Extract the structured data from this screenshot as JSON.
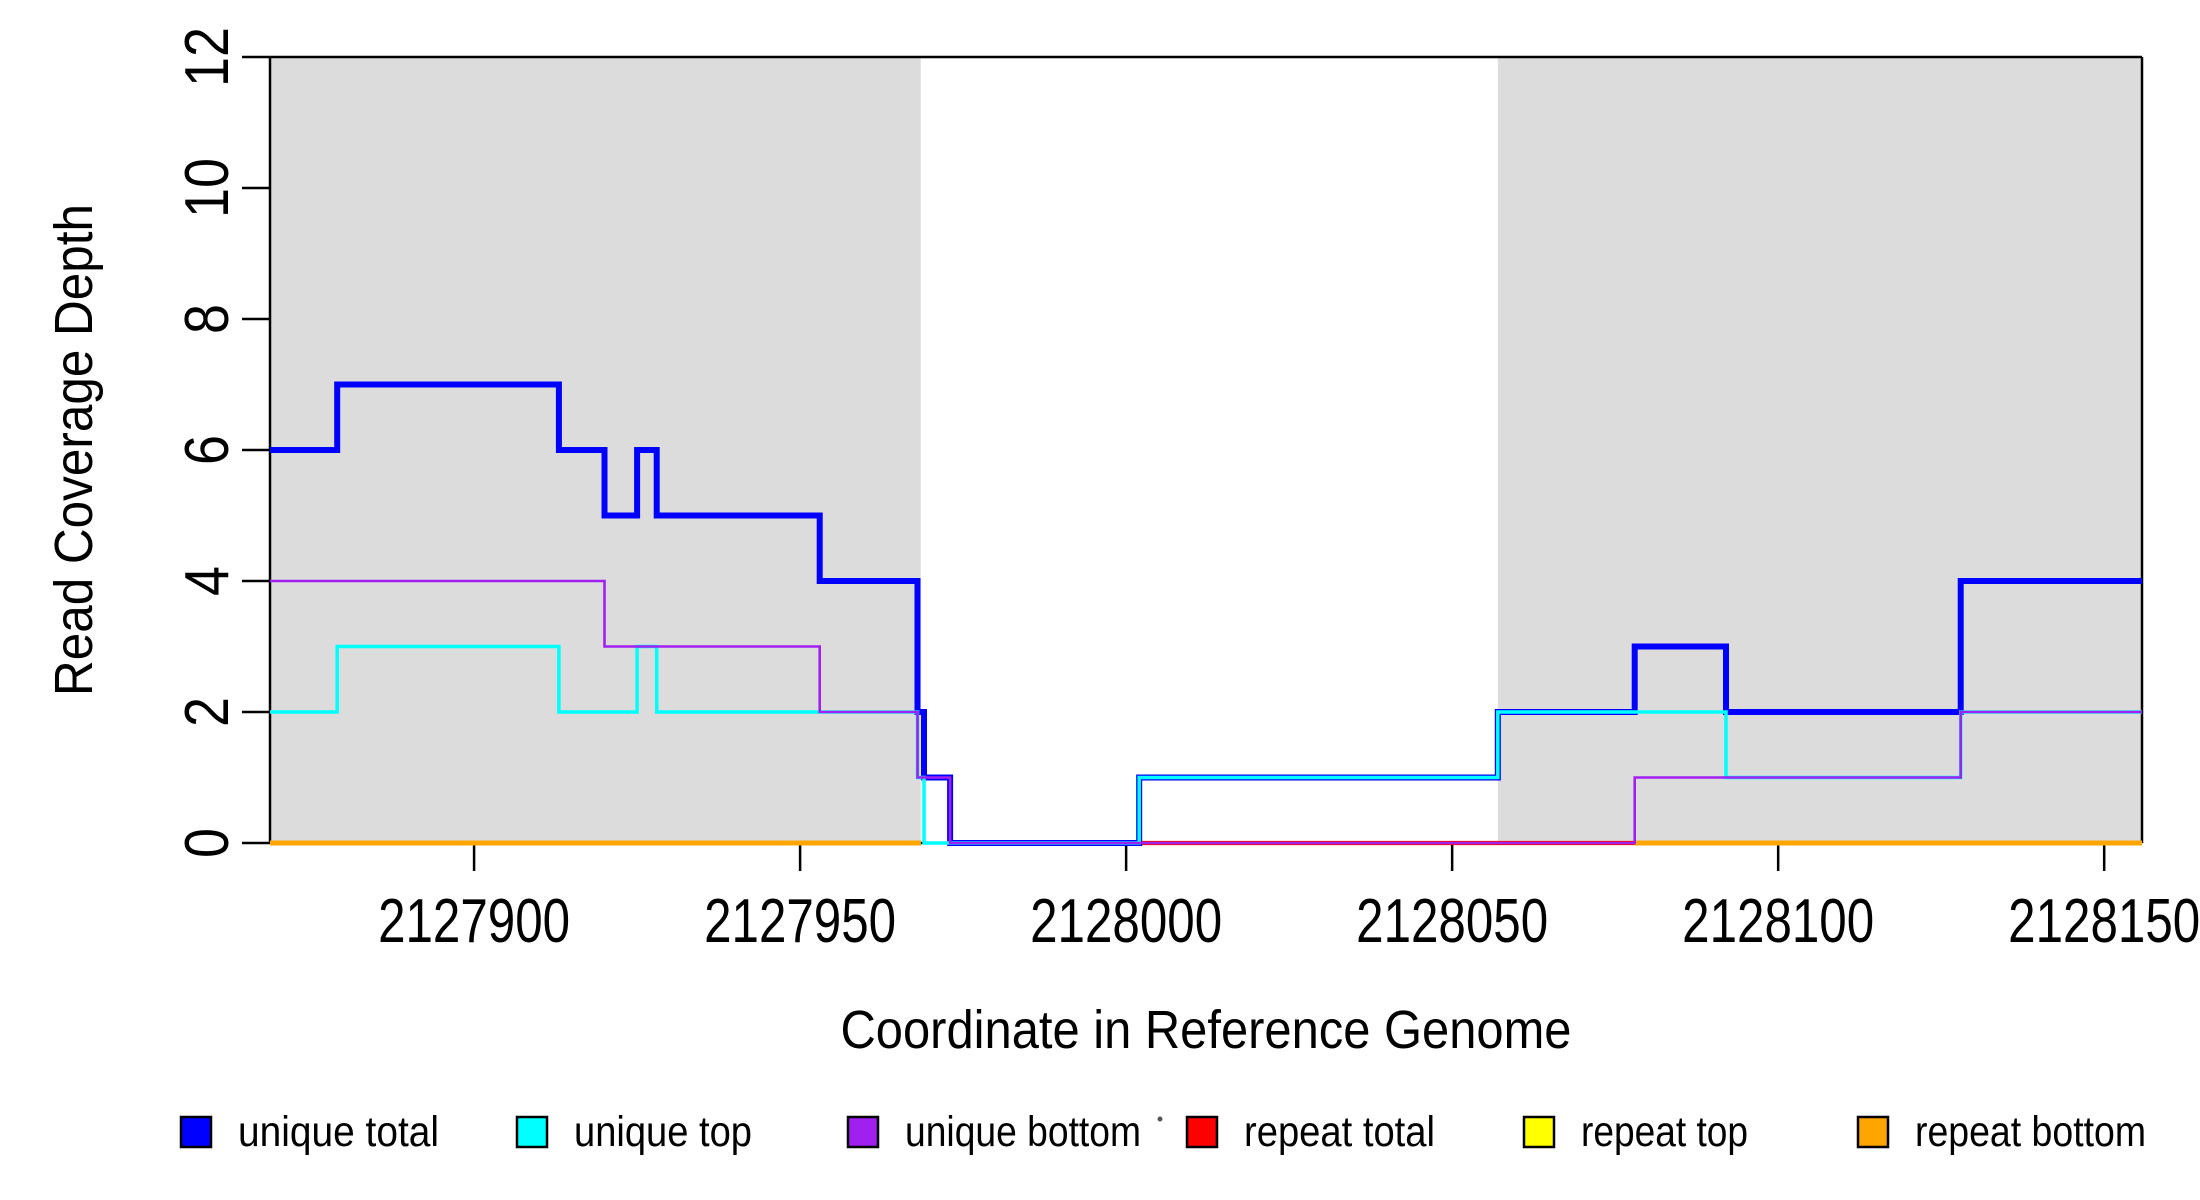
{
  "page": {
    "background": "#FFFFFF"
  },
  "chart_data": {
    "type": "line",
    "subtype": "step-coverage-plot",
    "title": "",
    "xlabel": "Coordinate in Reference Genome",
    "ylabel": "Read Coverage Depth",
    "xlim": [
      2127868.7,
      2128155.8
    ],
    "ylim": [
      0,
      12
    ],
    "x_ticks": [
      2127900,
      2127950,
      2128000,
      2128050,
      2128100,
      2128150
    ],
    "y_ticks": [
      0,
      2,
      4,
      6,
      8,
      10,
      12
    ],
    "grid": false,
    "legend_position": "bottom",
    "axis_color": "#000000",
    "shaded_regions": [
      {
        "name": "repeat-region-1",
        "x0": 2127868.7,
        "x1": 2127968.5,
        "color": "#DCDCDC"
      },
      {
        "name": "repeat-region-2",
        "x0": 2128057.0,
        "x1": 2128155.8,
        "color": "#DCDCDC"
      }
    ],
    "series": [
      {
        "name": "unique total",
        "color": "#0000FF",
        "line_width": 6,
        "parts": [
          [
            [
              2127868.7,
              6
            ],
            [
              2127879,
              7
            ],
            [
              2127913,
              6
            ],
            [
              2127920,
              5
            ],
            [
              2127925,
              6
            ],
            [
              2127928,
              5
            ],
            [
              2127953,
              4
            ],
            [
              2127968,
              2
            ],
            [
              2127969,
              1
            ],
            [
              2127973,
              0
            ],
            [
              2128002,
              1
            ],
            [
              2128057,
              2
            ],
            [
              2128078,
              3
            ],
            [
              2128092,
              2
            ],
            [
              2128128,
              4
            ],
            [
              2128155.8,
              4
            ]
          ]
        ]
      },
      {
        "name": "unique top",
        "color": "#00FFFF",
        "line_width": 3.5,
        "parts": [
          [
            [
              2127868.7,
              2
            ],
            [
              2127879,
              3
            ],
            [
              2127913,
              2
            ],
            [
              2127925,
              3
            ],
            [
              2127928,
              2
            ],
            [
              2127968,
              1
            ],
            [
              2127969,
              0
            ],
            [
              2128002,
              1
            ],
            [
              2128057,
              2
            ],
            [
              2128092,
              1
            ],
            [
              2128128,
              2
            ],
            [
              2128155.8,
              2
            ]
          ]
        ]
      },
      {
        "name": "unique bottom",
        "color": "#A020F0",
        "line_width": 2.6,
        "parts": [
          [
            [
              2127868.7,
              4
            ],
            [
              2127920,
              3
            ],
            [
              2127953,
              2
            ],
            [
              2127968,
              1
            ],
            [
              2127973,
              0
            ],
            [
              2128078,
              1
            ],
            [
              2128128,
              2
            ],
            [
              2128155.8,
              2
            ]
          ]
        ]
      },
      {
        "name": "repeat total",
        "color": "#FF0000",
        "line_width": 4.2,
        "parts": [
          [
            [
              2127868.7,
              0
            ],
            [
              2127968.5,
              0
            ]
          ],
          [
            [
              2128001.5,
              0
            ],
            [
              2128155.8,
              0
            ]
          ]
        ]
      },
      {
        "name": "repeat top",
        "color": "#FFFF00",
        "line_width": 3.6,
        "parts": [
          [
            [
              2127868.7,
              0
            ],
            [
              2127968.5,
              0
            ]
          ],
          [
            [
              2128078,
              0
            ],
            [
              2128155.8,
              0
            ]
          ]
        ]
      },
      {
        "name": "repeat bottom",
        "color": "#FFA500",
        "line_width": 5,
        "parts": [
          [
            [
              2127868.7,
              0
            ],
            [
              2127968.5,
              0
            ]
          ],
          [
            [
              2128078,
              0
            ],
            [
              2128155.8,
              0
            ]
          ]
        ]
      }
    ],
    "draw_order": [
      "repeat total",
      "repeat top",
      "repeat bottom",
      "unique total",
      "unique top",
      "unique bottom"
    ]
  },
  "legend": {
    "items": [
      {
        "label": "unique total",
        "color": "#0000FF",
        "border": "#000000"
      },
      {
        "label": "unique top",
        "color": "#00FFFF",
        "border": "#000000"
      },
      {
        "label": "unique bottom",
        "color": "#A020F0",
        "border": "#000000"
      },
      {
        "label": "repeat total",
        "color": "#FF0000",
        "border": "#000000"
      },
      {
        "label": "repeat top",
        "color": "#FFFF00",
        "border": "#000000"
      },
      {
        "label": "repeat bottom",
        "color": "#FFA500",
        "border": "#000000"
      }
    ],
    "stray_mark_color": "#555555"
  }
}
